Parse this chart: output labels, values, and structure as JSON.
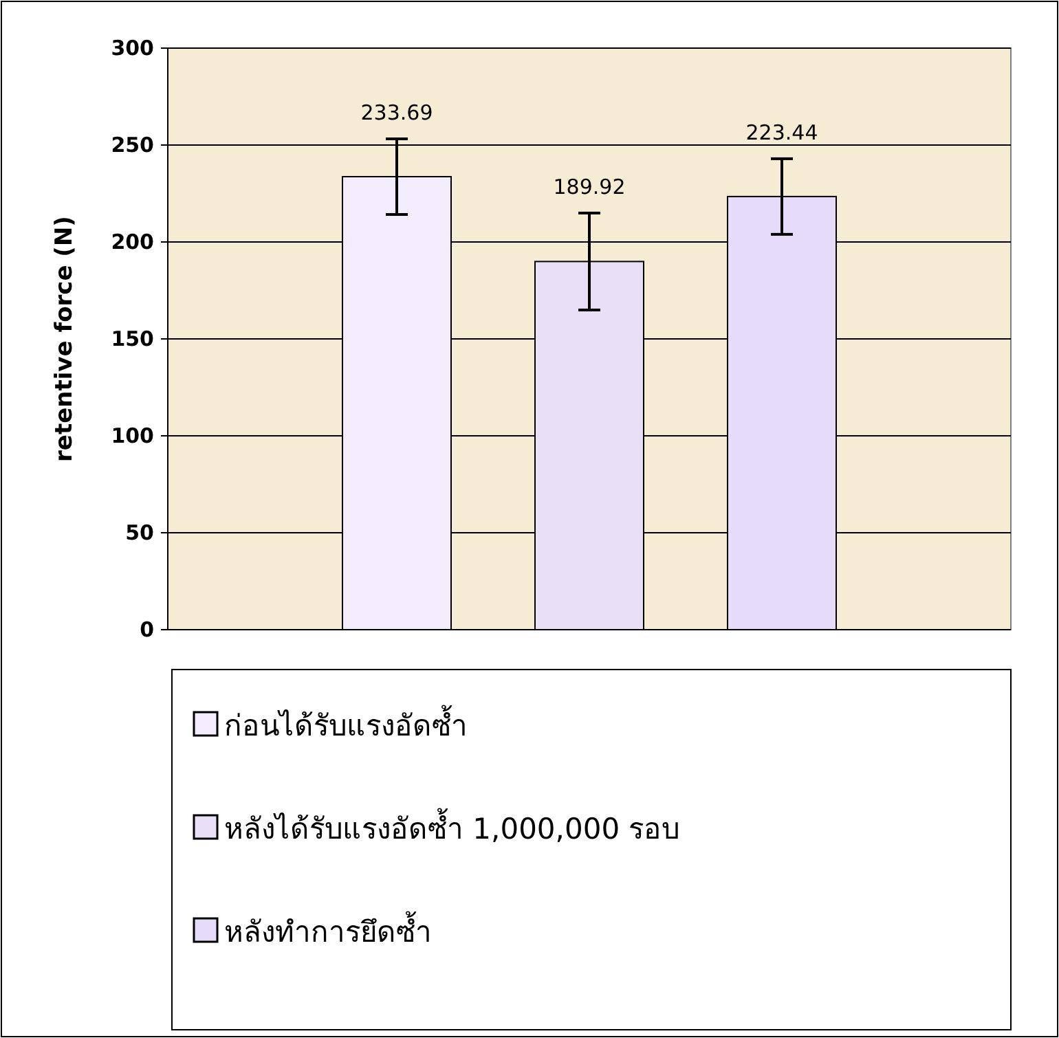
{
  "chart_data": {
    "type": "bar",
    "ylabel": "retentive force (N)",
    "categories": [
      null
    ],
    "series": [
      {
        "name": "ก่อนได้รับแรงอัดซ้ำ",
        "color": "#f2ecfd",
        "values": [
          233.69
        ],
        "errors": [
          19.5
        ]
      },
      {
        "name": "หลังได้รับแรงอัดซ้ำ  1,000,000 รอบ",
        "color": "#e9e0f7",
        "values": [
          189.92
        ],
        "errors": [
          25
        ]
      },
      {
        "name": "หลังทำการยึดซ้ำ",
        "color": "#e6dbf8",
        "values": [
          223.44
        ],
        "errors": [
          19.5
        ]
      }
    ],
    "ylim": [
      0,
      300
    ],
    "yticks": [
      0,
      50,
      100,
      150,
      200,
      250,
      300
    ],
    "grid": "y",
    "legend": "bottom",
    "data_labels": true
  }
}
